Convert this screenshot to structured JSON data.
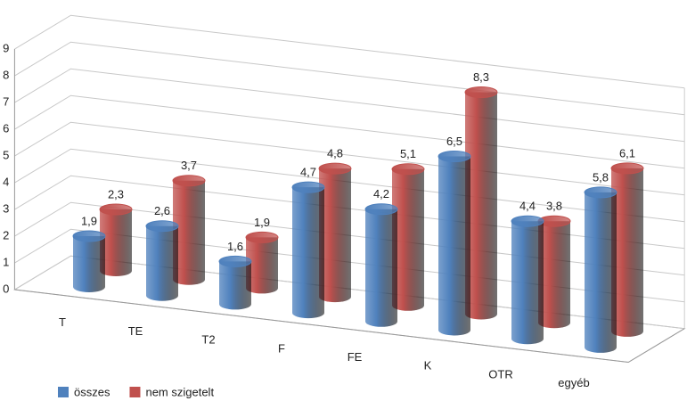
{
  "chart_data": {
    "type": "bar3d",
    "categories": [
      "T",
      "TE",
      "T2",
      "F",
      "FE",
      "K",
      "OTR",
      "egyéb"
    ],
    "series": [
      {
        "name": "összes",
        "color": "#4f81bd",
        "values": [
          1.9,
          2.6,
          1.6,
          4.7,
          4.2,
          6.5,
          4.4,
          5.8
        ],
        "value_labels": [
          "1,9",
          "2,6",
          "1,6",
          "4,7",
          "4,2",
          "6,5",
          "4,4",
          "5,8"
        ]
      },
      {
        "name": "nem szigetelt",
        "color": "#c0504d",
        "values": [
          2.3,
          3.7,
          1.9,
          4.8,
          5.1,
          8.3,
          3.8,
          6.1
        ],
        "value_labels": [
          "2,3",
          "3,7",
          "1,9",
          "4,8",
          "5,1",
          "8,3",
          "3,8",
          "6,1"
        ]
      }
    ],
    "ylim": [
      0,
      9
    ],
    "yticks": [
      0,
      1,
      2,
      3,
      4,
      5,
      6,
      7,
      8,
      9
    ],
    "grid": true,
    "legend": "bottom-left"
  }
}
